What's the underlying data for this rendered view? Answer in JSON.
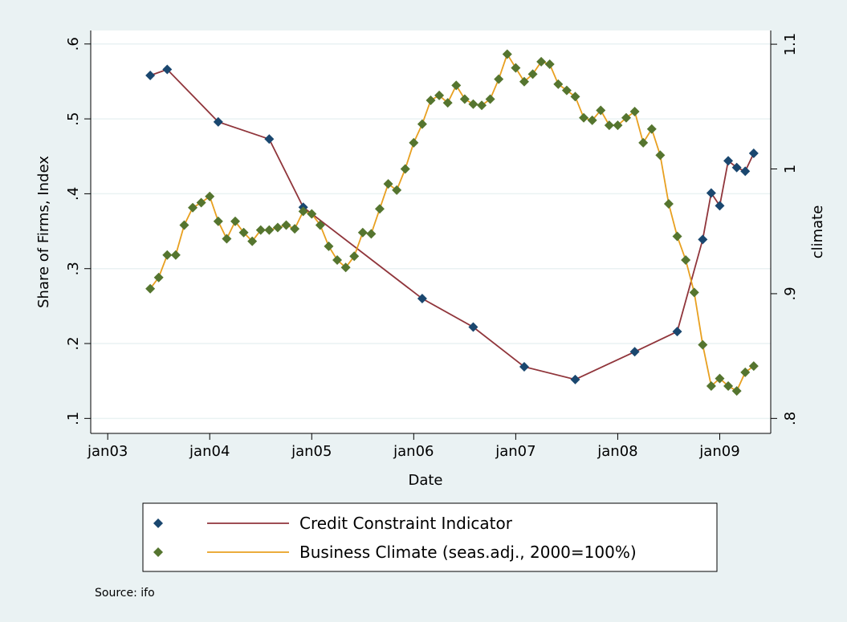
{
  "chart_data": {
    "type": "line",
    "x_label": "Date",
    "y_label": "Share of Firms, Index",
    "y2_label": "climate",
    "source": "Source: ifo",
    "xlim": [
      "2002-11",
      "2009-07"
    ],
    "xticks": [
      {
        "value": "2003-01",
        "label": "jan03"
      },
      {
        "value": "2004-01",
        "label": "jan04"
      },
      {
        "value": "2005-01",
        "label": "jan05"
      },
      {
        "value": "2006-01",
        "label": "jan06"
      },
      {
        "value": "2007-01",
        "label": "jan07"
      },
      {
        "value": "2008-01",
        "label": "jan08"
      },
      {
        "value": "2009-01",
        "label": "jan09"
      }
    ],
    "ylim": [
      0.08,
      0.618
    ],
    "yticks": [
      {
        "value": 0.1,
        "label": ".1"
      },
      {
        "value": 0.2,
        "label": ".2"
      },
      {
        "value": 0.3,
        "label": ".3"
      },
      {
        "value": 0.4,
        "label": ".4"
      },
      {
        "value": 0.5,
        "label": ".5"
      },
      {
        "value": 0.6,
        "label": ".6"
      }
    ],
    "y2lim": [
      0.788,
      1.111
    ],
    "y2ticks": [
      {
        "value": 0.8,
        "label": ".8"
      },
      {
        "value": 0.9,
        "label": ".9"
      },
      1,
      1.1
    ],
    "grid": true,
    "series": [
      {
        "name": "Credit Constraint Indicator",
        "color": "#90353b",
        "marker_color": "#1a476f",
        "x": [
          "2003-06",
          "2003-08",
          "2004-02",
          "2004-08",
          "2004-12",
          "2006-02",
          "2006-08",
          "2007-02",
          "2007-08",
          "2008-03",
          "2008-08",
          "2008-11",
          "2008-12",
          "2009-01",
          "2009-02",
          "2009-03",
          "2009-04",
          "2009-05"
        ],
        "values": [
          0.558,
          0.566,
          0.496,
          0.473,
          0.382,
          0.26,
          0.222,
          0.169,
          0.152,
          0.189,
          0.216,
          0.339,
          0.401,
          0.384,
          0.444,
          0.435,
          0.43,
          0.454
        ]
      },
      {
        "name": "Business Climate (seas.adj., 2000=100%)",
        "color": "#e8a020",
        "marker_color": "#55752f",
        "axis": "y2",
        "x": [
          "2003-06",
          "2003-07",
          "2003-08",
          "2003-09",
          "2003-10",
          "2003-11",
          "2003-12",
          "2004-01",
          "2004-02",
          "2004-03",
          "2004-04",
          "2004-05",
          "2004-06",
          "2004-07",
          "2004-08",
          "2004-09",
          "2004-10",
          "2004-11",
          "2004-12",
          "2005-01",
          "2005-02",
          "2005-03",
          "2005-04",
          "2005-05",
          "2005-06",
          "2005-07",
          "2005-08",
          "2005-09",
          "2005-10",
          "2005-11",
          "2005-12",
          "2006-01",
          "2006-02",
          "2006-03",
          "2006-04",
          "2006-05",
          "2006-06",
          "2006-07",
          "2006-08",
          "2006-09",
          "2006-10",
          "2006-11",
          "2006-12",
          "2007-01",
          "2007-02",
          "2007-03",
          "2007-04",
          "2007-05",
          "2007-06",
          "2007-07",
          "2007-08",
          "2007-09",
          "2007-10",
          "2007-11",
          "2007-12",
          "2008-01",
          "2008-02",
          "2008-03",
          "2008-04",
          "2008-05",
          "2008-06",
          "2008-07",
          "2008-08",
          "2008-09",
          "2008-10",
          "2008-11",
          "2008-12",
          "2009-01",
          "2009-02",
          "2009-03",
          "2009-04",
          "2009-05"
        ],
        "values": [
          0.904,
          0.913,
          0.931,
          0.931,
          0.955,
          0.969,
          0.973,
          0.978,
          0.958,
          0.944,
          0.958,
          0.949,
          0.942,
          0.951,
          0.951,
          0.953,
          0.955,
          0.952,
          0.966,
          0.964,
          0.955,
          0.938,
          0.927,
          0.921,
          0.93,
          0.949,
          0.948,
          0.968,
          0.988,
          0.983,
          1.0,
          1.021,
          1.036,
          1.055,
          1.059,
          1.053,
          1.067,
          1.056,
          1.052,
          1.051,
          1.056,
          1.072,
          1.092,
          1.081,
          1.07,
          1.076,
          1.086,
          1.084,
          1.068,
          1.063,
          1.058,
          1.041,
          1.039,
          1.047,
          1.035,
          1.035,
          1.041,
          1.046,
          1.021,
          1.032,
          1.011,
          0.972,
          0.946,
          0.927,
          0.901,
          0.859,
          0.826,
          0.832,
          0.826,
          0.822,
          0.837,
          0.842
        ]
      }
    ]
  }
}
